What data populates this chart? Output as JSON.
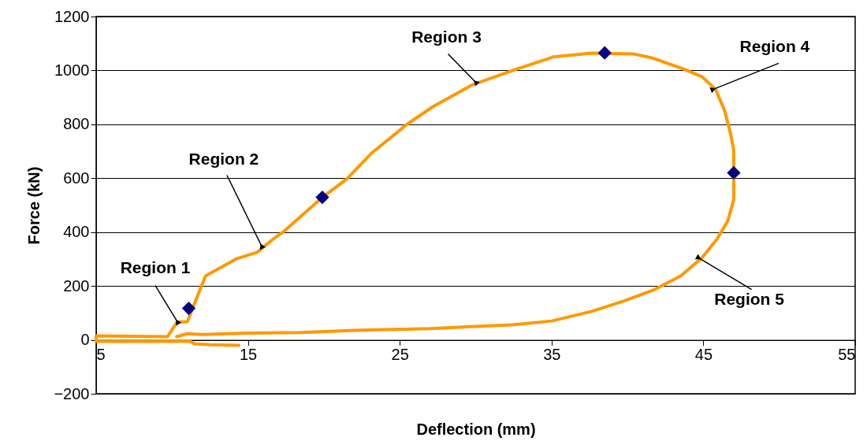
{
  "chart_data": {
    "type": "line",
    "xlabel": "Deflection (mm)",
    "ylabel": "Force (kN)",
    "xlim": [
      5,
      55
    ],
    "xticks": [
      5,
      15,
      25,
      35,
      45,
      55
    ],
    "ylim": [
      -200,
      1200
    ],
    "yticks": [
      -200,
      0,
      200,
      400,
      600,
      800,
      1000,
      1200
    ],
    "grid": "y",
    "series": [
      {
        "type": "line",
        "color": "#ff9900",
        "x": [
          14.4,
          12.5,
          11.5,
          11.2,
          5,
          5,
          9.7,
          10.35,
          11,
          12.2,
          14.2,
          15.6,
          16.8,
          17.4,
          19.9,
          21.5,
          23.2,
          25.5,
          27.2,
          29.8,
          32.6,
          35.1,
          37.6,
          40.4,
          41.6,
          43.8,
          44.9,
          45.8,
          46.4,
          46.8,
          47.0,
          47.0,
          46.6,
          45.9,
          44.9,
          43.5,
          41.8,
          39.7,
          37.6,
          35.0,
          32.4,
          30.0,
          27.0,
          22.0,
          18.5,
          15.0,
          12.0,
          11.0,
          10.3
        ],
        "values": [
          -20,
          -18,
          -15,
          -6,
          -6,
          15,
          12,
          67,
          67,
          237,
          300,
          325,
          380,
          404,
          529,
          597,
          696,
          801,
          866,
          947,
          1003,
          1050,
          1064,
          1061,
          1047,
          1003,
          977,
          930,
          851,
          763,
          705,
          520,
          441,
          374,
          304,
          237,
          187,
          143,
          105,
          70,
          56,
          50,
          42,
          35,
          27,
          25,
          20,
          23,
          12
        ]
      },
      {
        "type": "scatter",
        "color": "#000080",
        "marker": "diamond",
        "x": [
          11.1,
          19.9,
          38.5,
          47.0
        ],
        "values": [
          117,
          529,
          1065,
          620
        ]
      }
    ],
    "annotations": [
      {
        "text": "Region 1",
        "x": 10.35,
        "y": 67
      },
      {
        "text": "Region 2",
        "x": 15.9,
        "y": 348
      },
      {
        "text": "Region 3",
        "x": 30.0,
        "y": 956
      },
      {
        "text": "Region 4",
        "x": 45.65,
        "y": 930
      },
      {
        "text": "Region 5",
        "x": 44.7,
        "y": 304
      }
    ]
  }
}
